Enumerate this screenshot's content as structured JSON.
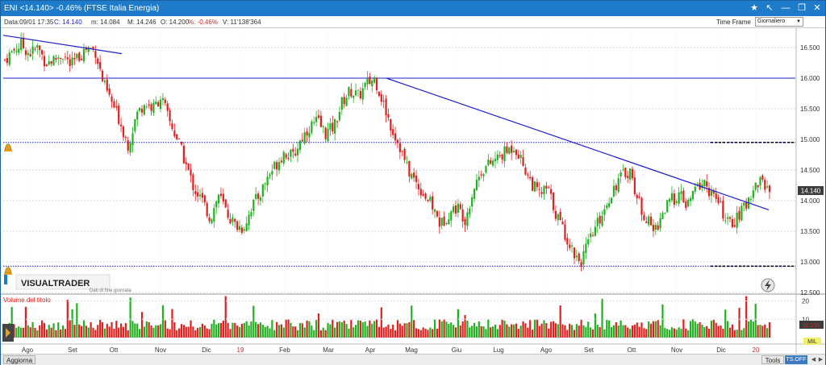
{
  "window": {
    "title": "ENI <14.140> -0.46%  (FTSE Italia Energia)"
  },
  "infobar": {
    "date": "Data:09/01 17:35",
    "close": "C: 14.140",
    "min": "m: 14.084",
    "max": "M: 14.246",
    "open": "O: 14.200",
    "change": "%: -0.46%",
    "volume": "V: 11'138'364",
    "time_frame_label": "Time Frame",
    "time_frame_value": "Giornaliero"
  },
  "colors": {
    "up": "#22b022",
    "down": "#e02020",
    "trendline": "#1f1fd0",
    "price_tag_bg": "#3c3c3c",
    "accent": "#1e7bc9"
  },
  "icons": [
    "star-icon",
    "cursor-icon",
    "minimize-icon",
    "restore-icon",
    "close-icon",
    "alarm-icon",
    "lightning-icon",
    "play-arrow-icon"
  ],
  "logo": {
    "name": "VISUALTRADER",
    "caption": "Dati di fine giornata"
  },
  "volume_panel": {
    "title": "Volume del titolo",
    "unit": "MIL",
    "last_value": "11.138"
  },
  "current_price_tag": "14.140",
  "bottombar": {
    "aggiorna": "Aggiorna",
    "tools": "Tools",
    "tsoff": "TS.OFF"
  },
  "chart_data": {
    "type": "candlestick",
    "instrument": "ENI",
    "title": "",
    "xlabel": "",
    "ylabel": "",
    "ylim": [
      12.5,
      16.75
    ],
    "y_ticks": [
      "16.500",
      "16.000",
      "15.500",
      "15.000",
      "14.500",
      "14.000",
      "13.500",
      "13.000",
      "12.500"
    ],
    "x_ticks": [
      "Ago",
      "Set",
      "Ott",
      "Nov",
      "Dic",
      "19",
      "Feb",
      "Mar",
      "Apr",
      "Mag",
      "Giu",
      "Lug",
      "Ago",
      "Set",
      "Ott",
      "Nov",
      "Dic",
      "20"
    ],
    "horizontal_levels": [
      {
        "value": 16.0,
        "style": "solid"
      },
      {
        "value": 14.95,
        "style": "dotted"
      },
      {
        "value": 12.93,
        "style": "dotted"
      }
    ],
    "trendlines": [
      {
        "from": [
          "Ago 2018",
          16.7
        ],
        "to": [
          "Ott 2018",
          16.4
        ]
      },
      {
        "from": [
          "Apr 2019",
          16.0
        ],
        "to": [
          "Gen 2020",
          13.85
        ]
      }
    ],
    "close_path": [
      16.3,
      16.45,
      16.55,
      16.4,
      16.5,
      16.25,
      16.3,
      16.4,
      16.2,
      16.35,
      16.5,
      16.45,
      15.9,
      15.6,
      15.3,
      14.9,
      15.4,
      15.6,
      15.5,
      15.7,
      15.3,
      15.0,
      14.6,
      14.2,
      14.0,
      13.7,
      14.1,
      13.8,
      13.6,
      13.55,
      13.9,
      14.1,
      14.4,
      14.6,
      14.8,
      14.7,
      15.0,
      15.2,
      15.3,
      15.1,
      15.2,
      15.6,
      15.8,
      15.7,
      15.9,
      16.0,
      15.6,
      15.2,
      14.9,
      14.5,
      14.3,
      14.1,
      13.9,
      13.6,
      13.8,
      13.9,
      13.7,
      14.2,
      14.5,
      14.6,
      14.7,
      14.8,
      14.9,
      14.6,
      14.3,
      14.1,
      14.2,
      13.8,
      13.5,
      13.2,
      13.0,
      13.3,
      13.6,
      13.9,
      14.2,
      14.4,
      14.5,
      14.0,
      13.7,
      13.5,
      13.8,
      14.0,
      14.1,
      13.9,
      14.2,
      14.3,
      14.1,
      13.9,
      13.6,
      13.7,
      13.9,
      14.2,
      14.35,
      14.14
    ],
    "volume_ylim": [
      0,
      22
    ],
    "volume_ticks": [
      "20",
      "10"
    ]
  }
}
